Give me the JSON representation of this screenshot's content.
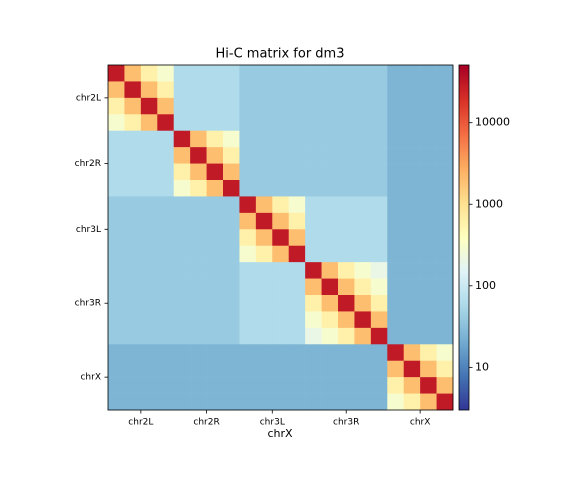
{
  "chart_data": {
    "type": "heatmap",
    "title": "Hi-C matrix for dm3",
    "x_label": "chrX",
    "xlim": [
      0,
      21
    ],
    "ylim": [
      21,
      0
    ],
    "xticks": [
      {
        "value": 2,
        "label": "chr2L"
      },
      {
        "value": 6,
        "label": "chr2R"
      },
      {
        "value": 10,
        "label": "chr3L"
      },
      {
        "value": 14.5,
        "label": "chr3R"
      },
      {
        "value": 19,
        "label": "chrX"
      }
    ],
    "yticks": [
      {
        "value": 2,
        "label": "chr2L"
      },
      {
        "value": 6,
        "label": "chr2R"
      },
      {
        "value": 10,
        "label": "chr3L"
      },
      {
        "value": 14.5,
        "label": "chr3R"
      },
      {
        "value": 19,
        "label": "chrX"
      }
    ],
    "colorbar": {
      "log": true,
      "lim": [
        3,
        51000
      ],
      "ticks": [
        10,
        100,
        1000,
        10000
      ],
      "colors": [
        "#313695",
        "#4575b4",
        "#74add1",
        "#abd9e9",
        "#e0f3f8",
        "#ffffbf",
        "#fee090",
        "#fdae61",
        "#f46d43",
        "#d73027",
        "#a50026"
      ]
    },
    "z": [
      [
        30000,
        2000,
        600,
        300,
        60,
        60,
        60,
        60,
        40,
        40,
        40,
        40,
        40,
        40,
        40,
        40,
        40,
        25,
        25,
        25,
        25
      ],
      [
        2000,
        30000,
        2000,
        600,
        60,
        60,
        60,
        60,
        40,
        40,
        40,
        40,
        40,
        40,
        40,
        40,
        40,
        25,
        25,
        25,
        25
      ],
      [
        600,
        2000,
        30000,
        2000,
        60,
        60,
        60,
        60,
        40,
        40,
        40,
        40,
        40,
        40,
        40,
        40,
        40,
        25,
        25,
        25,
        25
      ],
      [
        300,
        600,
        2000,
        30000,
        60,
        60,
        60,
        60,
        40,
        40,
        40,
        40,
        40,
        40,
        40,
        40,
        40,
        25,
        25,
        25,
        25
      ],
      [
        60,
        60,
        60,
        60,
        30000,
        2000,
        600,
        300,
        40,
        40,
        40,
        40,
        40,
        40,
        40,
        40,
        40,
        25,
        25,
        25,
        25
      ],
      [
        60,
        60,
        60,
        60,
        2000,
        30000,
        2000,
        600,
        40,
        40,
        40,
        40,
        40,
        40,
        40,
        40,
        40,
        25,
        25,
        25,
        25
      ],
      [
        60,
        60,
        60,
        60,
        600,
        2000,
        30000,
        2000,
        40,
        40,
        40,
        40,
        40,
        40,
        40,
        40,
        40,
        25,
        25,
        25,
        25
      ],
      [
        60,
        60,
        60,
        60,
        300,
        600,
        2000,
        30000,
        40,
        40,
        40,
        40,
        40,
        40,
        40,
        40,
        40,
        25,
        25,
        25,
        25
      ],
      [
        40,
        40,
        40,
        40,
        40,
        40,
        40,
        40,
        30000,
        2000,
        600,
        300,
        60,
        60,
        60,
        60,
        60,
        25,
        25,
        25,
        25
      ],
      [
        40,
        40,
        40,
        40,
        40,
        40,
        40,
        40,
        2000,
        30000,
        2000,
        600,
        60,
        60,
        60,
        60,
        60,
        25,
        25,
        25,
        25
      ],
      [
        40,
        40,
        40,
        40,
        40,
        40,
        40,
        40,
        600,
        2000,
        30000,
        2000,
        60,
        60,
        60,
        60,
        60,
        25,
        25,
        25,
        25
      ],
      [
        40,
        40,
        40,
        40,
        40,
        40,
        40,
        40,
        300,
        600,
        2000,
        30000,
        60,
        60,
        60,
        60,
        60,
        25,
        25,
        25,
        25
      ],
      [
        40,
        40,
        40,
        40,
        40,
        40,
        40,
        40,
        60,
        60,
        60,
        60,
        30000,
        2000,
        600,
        300,
        200,
        25,
        25,
        25,
        25
      ],
      [
        40,
        40,
        40,
        40,
        40,
        40,
        40,
        40,
        60,
        60,
        60,
        60,
        2000,
        30000,
        2000,
        600,
        300,
        25,
        25,
        25,
        25
      ],
      [
        40,
        40,
        40,
        40,
        40,
        40,
        40,
        40,
        60,
        60,
        60,
        60,
        600,
        2000,
        30000,
        2000,
        600,
        25,
        25,
        25,
        25
      ],
      [
        40,
        40,
        40,
        40,
        40,
        40,
        40,
        40,
        60,
        60,
        60,
        60,
        300,
        600,
        2000,
        30000,
        2000,
        25,
        25,
        25,
        25
      ],
      [
        40,
        40,
        40,
        40,
        40,
        40,
        40,
        40,
        60,
        60,
        60,
        60,
        200,
        300,
        600,
        2000,
        30000,
        25,
        25,
        25,
        25
      ],
      [
        25,
        25,
        25,
        25,
        25,
        25,
        25,
        25,
        25,
        25,
        25,
        25,
        25,
        25,
        25,
        25,
        25,
        30000,
        2000,
        600,
        300
      ],
      [
        25,
        25,
        25,
        25,
        25,
        25,
        25,
        25,
        25,
        25,
        25,
        25,
        25,
        25,
        25,
        25,
        25,
        2000,
        30000,
        2000,
        600
      ],
      [
        25,
        25,
        25,
        25,
        25,
        25,
        25,
        25,
        25,
        25,
        25,
        25,
        25,
        25,
        25,
        25,
        25,
        600,
        2000,
        30000,
        2000
      ],
      [
        25,
        25,
        25,
        25,
        25,
        25,
        25,
        25,
        25,
        25,
        25,
        25,
        25,
        25,
        25,
        25,
        25,
        300,
        600,
        2000,
        30000
      ]
    ]
  }
}
